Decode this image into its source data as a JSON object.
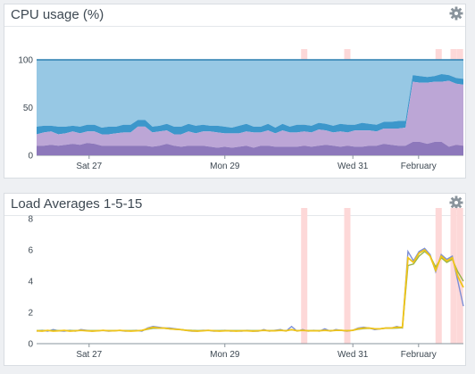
{
  "colors": {
    "panel_bg": "#ffffff",
    "title_text": "#3d4852",
    "gear": "#8a949c",
    "event_band": "#fdd8d8",
    "cpu_user": "#bca6d6",
    "cpu_system": "#3c97cb",
    "cpu_total_fill": "#97c8e4",
    "cpu_total_line": "#2a7fb0",
    "cpu_base": "#8d78bb",
    "load_1": "#7b8ed6",
    "load_5": "#f0c419",
    "load_15": "#93b34a"
  },
  "panels": {
    "cpu": {
      "title": "CPU usage (%)",
      "settings_icon": "gear-icon"
    },
    "load": {
      "title": "Load Averages 1-5-15",
      "settings_icon": "gear-icon"
    }
  },
  "chart_data": [
    {
      "type": "area",
      "title": "CPU usage (%)",
      "x_ticks": [
        "Sat 27",
        "Mon 29",
        "Wed 31",
        "February"
      ],
      "x_tick_fraction": [
        0.123,
        0.441,
        0.741,
        0.895
      ],
      "ylim": [
        0,
        100
      ],
      "y_ticks": [
        0,
        50,
        100
      ],
      "grid": true,
      "event_band_fraction": [
        0.627,
        0.728,
        0.942,
        0.977,
        0.992
      ],
      "series": [
        {
          "values": [
            10,
            10,
            11,
            10,
            11,
            12,
            11,
            13,
            12,
            10,
            10,
            10,
            10,
            10,
            10,
            10,
            9,
            10,
            12,
            10,
            9,
            10,
            10,
            10,
            9,
            8,
            9,
            8,
            9,
            10,
            8,
            10,
            10,
            9,
            9,
            9,
            9,
            10,
            9,
            10,
            11,
            10,
            9,
            10,
            9,
            9,
            10,
            10,
            12,
            11,
            10,
            10,
            14,
            14,
            12,
            14,
            14,
            9,
            11,
            10
          ]
        },
        {
          "values": [
            12,
            14,
            14,
            12,
            12,
            13,
            12,
            12,
            13,
            12,
            12,
            13,
            14,
            14,
            20,
            20,
            15,
            15,
            14,
            12,
            13,
            15,
            13,
            15,
            16,
            16,
            14,
            15,
            14,
            15,
            16,
            14,
            16,
            14,
            17,
            15,
            15,
            15,
            15,
            17,
            15,
            14,
            16,
            14,
            17,
            17,
            16,
            15,
            16,
            17,
            18,
            19,
            63,
            62,
            64,
            63,
            63,
            69,
            64,
            64
          ]
        },
        {
          "values": [
            8,
            7,
            6,
            8,
            7,
            6,
            7,
            7,
            7,
            7,
            8,
            7,
            8,
            8,
            7,
            7,
            6,
            6,
            7,
            8,
            8,
            8,
            8,
            7,
            6,
            7,
            7,
            6,
            8,
            8,
            6,
            6,
            7,
            6,
            7,
            6,
            8,
            7,
            7,
            7,
            7,
            7,
            8,
            8,
            6,
            8,
            7,
            7,
            7,
            7,
            8,
            7,
            7,
            7,
            6,
            6,
            8,
            6,
            6,
            6
          ]
        },
        {
          "values": [
            100,
            100,
            100,
            100,
            100,
            100,
            100,
            100,
            100,
            100,
            100,
            100,
            100,
            100,
            100,
            100,
            100,
            100,
            100,
            100,
            100,
            100,
            100,
            100,
            100,
            100,
            100,
            100,
            100,
            100,
            100,
            100,
            100,
            100,
            100,
            100,
            100,
            100,
            100,
            100,
            100,
            100,
            100,
            100,
            100,
            100,
            100,
            100,
            100,
            100,
            100,
            100,
            100,
            100,
            100,
            100,
            100,
            100,
            100,
            100
          ]
        }
      ]
    },
    {
      "type": "line",
      "title": "Load Averages 1-5-15",
      "x_ticks": [
        "Sat 27",
        "Mon 29",
        "Wed 31",
        "February"
      ],
      "x_tick_fraction": [
        0.123,
        0.441,
        0.741,
        0.895
      ],
      "ylim": [
        0,
        8
      ],
      "y_ticks": [
        0,
        2,
        4,
        6,
        8
      ],
      "grid": false,
      "event_band_fraction": [
        0.627,
        0.728,
        0.942,
        0.977,
        0.992
      ],
      "series": [
        {
          "values": [
            0.8,
            0.85,
            0.8,
            0.9,
            0.82,
            0.8,
            0.85,
            0.8,
            0.9,
            0.85,
            0.8,
            0.82,
            0.85,
            0.8,
            0.82,
            0.85,
            0.8,
            0.82,
            0.85,
            0.8,
            1.0,
            1.1,
            1.05,
            1.0,
            1.0,
            0.95,
            0.9,
            0.85,
            0.8,
            0.8,
            0.85,
            0.85,
            0.8,
            0.82,
            0.85,
            0.8,
            0.82,
            0.8,
            0.85,
            0.8,
            0.8,
            0.9,
            0.8,
            0.85,
            0.9,
            0.8,
            1.1,
            0.8,
            0.9,
            0.8,
            0.85,
            0.8,
            0.95,
            0.8,
            0.9,
            0.85,
            0.8,
            0.85,
            1.0,
            1.05,
            1.0,
            0.9,
            0.95,
            1.0,
            1.0,
            1.1,
            1.0,
            5.9,
            5.3,
            5.9,
            6.1,
            5.7,
            4.6,
            5.7,
            5.4,
            5.6,
            4.0,
            2.4
          ]
        },
        {
          "values": [
            0.82,
            0.8,
            0.85,
            0.8,
            0.82,
            0.85,
            0.8,
            0.82,
            0.85,
            0.82,
            0.8,
            0.82,
            0.85,
            0.82,
            0.82,
            0.85,
            0.82,
            0.8,
            0.82,
            0.85,
            0.95,
            1.05,
            1.0,
            1.0,
            0.95,
            0.92,
            0.9,
            0.85,
            0.82,
            0.8,
            0.82,
            0.85,
            0.82,
            0.8,
            0.82,
            0.82,
            0.8,
            0.82,
            0.82,
            0.8,
            0.82,
            0.85,
            0.82,
            0.82,
            0.85,
            0.82,
            0.9,
            0.82,
            0.85,
            0.82,
            0.82,
            0.82,
            0.85,
            0.82,
            0.85,
            0.85,
            0.82,
            0.85,
            0.95,
            1.0,
            1.0,
            0.95,
            0.95,
            1.0,
            1.0,
            1.05,
            1.05,
            5.5,
            5.2,
            5.8,
            6.0,
            5.6,
            4.7,
            5.6,
            5.3,
            5.5,
            4.3,
            3.6
          ]
        },
        {
          "values": [
            0.84,
            0.84,
            0.84,
            0.84,
            0.84,
            0.84,
            0.84,
            0.84,
            0.84,
            0.84,
            0.84,
            0.84,
            0.84,
            0.84,
            0.84,
            0.84,
            0.84,
            0.84,
            0.84,
            0.84,
            0.92,
            0.98,
            0.98,
            0.98,
            0.95,
            0.92,
            0.9,
            0.87,
            0.85,
            0.84,
            0.84,
            0.84,
            0.84,
            0.84,
            0.84,
            0.84,
            0.84,
            0.84,
            0.84,
            0.84,
            0.84,
            0.85,
            0.84,
            0.84,
            0.86,
            0.84,
            0.88,
            0.84,
            0.85,
            0.84,
            0.84,
            0.84,
            0.85,
            0.84,
            0.85,
            0.85,
            0.84,
            0.85,
            0.92,
            0.96,
            0.98,
            0.96,
            0.96,
            0.98,
            0.98,
            1.0,
            1.02,
            5.0,
            5.1,
            5.6,
            5.9,
            5.6,
            4.9,
            5.5,
            5.2,
            5.4,
            4.6,
            4.0
          ]
        }
      ]
    }
  ]
}
